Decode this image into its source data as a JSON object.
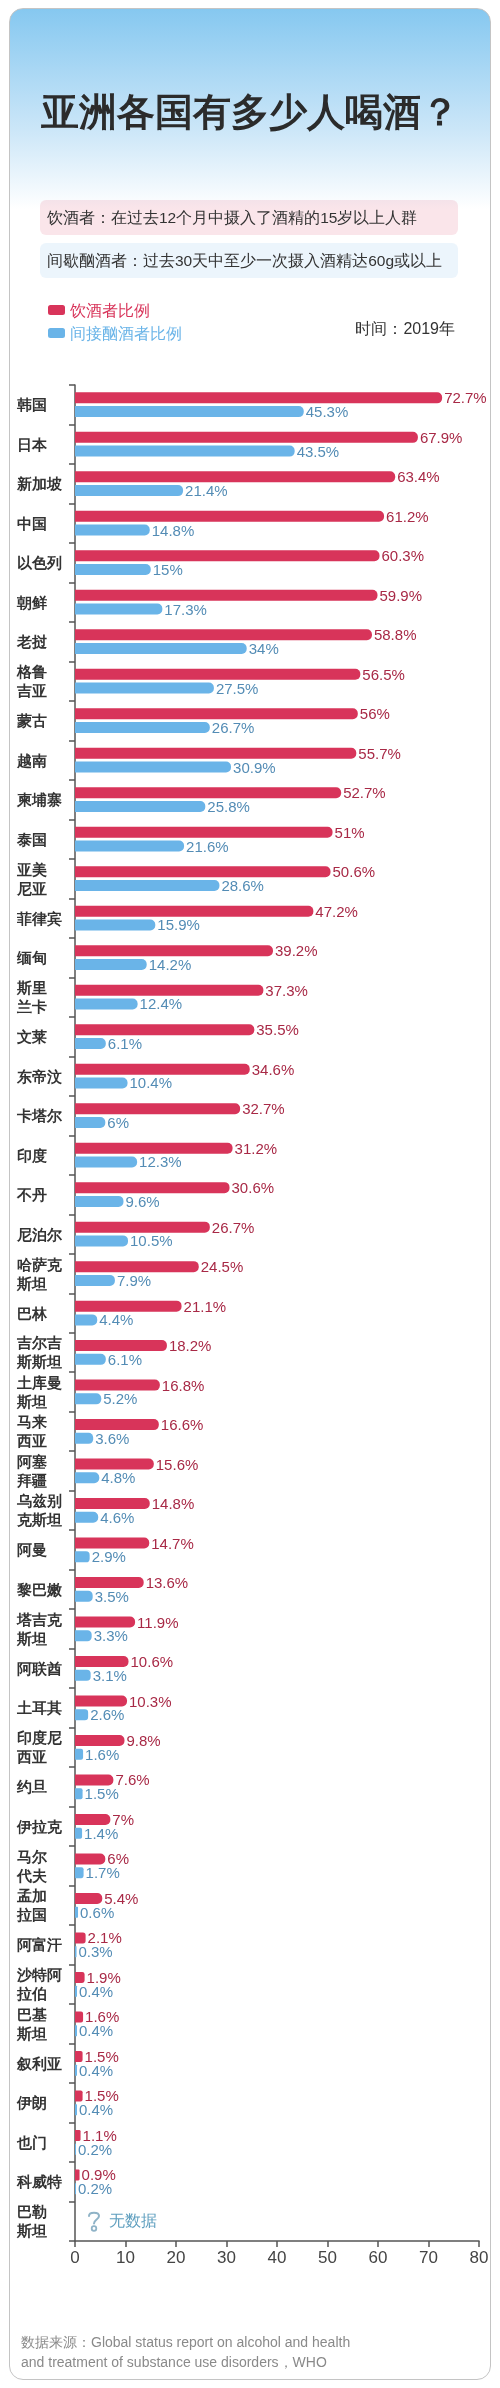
{
  "chart_data": {
    "type": "bar",
    "orientation": "horizontal",
    "title": "亚洲各国有多少人喝酒？",
    "categories": [
      "韩国",
      "日本",
      "新加坡",
      "中国",
      "以色列",
      "朝鲜",
      "老挝",
      "格鲁吉亚",
      "蒙古",
      "越南",
      "柬埔寨",
      "泰国",
      "亚美尼亚",
      "菲律宾",
      "缅甸",
      "斯里兰卡",
      "文莱",
      "东帝汶",
      "卡塔尔",
      "印度",
      "不丹",
      "尼泊尔",
      "哈萨克斯坦",
      "巴林",
      "吉尔吉斯斯坦",
      "土库曼斯坦",
      "马来西亚",
      "阿塞拜疆",
      "乌兹别克斯坦",
      "阿曼",
      "黎巴嫩",
      "塔吉克斯坦",
      "阿联酋",
      "土耳其",
      "印度尼西亚",
      "约旦",
      "伊拉克",
      "马尔代夫",
      "孟加拉国",
      "阿富汗",
      "沙特阿拉伯",
      "巴基斯坦",
      "叙利亚",
      "伊朗",
      "也门",
      "科威特",
      "巴勒斯坦"
    ],
    "series": [
      {
        "name": "饮酒者比例",
        "color": "#d8345a",
        "values": [
          72.7,
          67.9,
          63.4,
          61.2,
          60.3,
          59.9,
          58.8,
          56.5,
          56,
          55.7,
          52.7,
          51,
          50.6,
          47.2,
          39.2,
          37.3,
          35.5,
          34.6,
          32.7,
          31.2,
          30.6,
          26.7,
          24.5,
          21.1,
          18.2,
          16.8,
          16.6,
          15.6,
          14.8,
          14.7,
          13.6,
          11.9,
          10.6,
          10.3,
          9.8,
          7.6,
          7,
          6,
          5.4,
          2.1,
          1.9,
          1.6,
          1.5,
          1.5,
          1.1,
          0.9,
          null
        ],
        "value_labels": [
          "72.7%",
          "67.9%",
          "63.4%",
          "61.2%",
          "60.3%",
          "59.9%",
          "58.8%",
          "56.5%",
          "56%",
          "55.7%",
          "52.7%",
          "51%",
          "50.6%",
          "47.2%",
          "39.2%",
          "37.3%",
          "35.5%",
          "34.6%",
          "32.7%",
          "31.2%",
          "30.6%",
          "26.7%",
          "24.5%",
          "21.1%",
          "18.2%",
          "16.8%",
          "16.6%",
          "15.6%",
          "14.8%",
          "14.7%",
          "13.6%",
          "11.9%",
          "10.6%",
          "10.3%",
          "9.8%",
          "7.6%",
          "7%",
          "6%",
          "5.4%",
          "2.1%",
          "1.9%",
          "1.6%",
          "1.5%",
          "1.5%",
          "1.1%",
          "0.9%",
          null
        ]
      },
      {
        "name": "间接酗酒者比例",
        "color": "#6ab4e8",
        "values": [
          45.3,
          43.5,
          21.4,
          14.8,
          15,
          17.3,
          34,
          27.5,
          26.7,
          30.9,
          25.8,
          21.6,
          28.6,
          15.9,
          14.2,
          12.4,
          6.1,
          10.4,
          6,
          12.3,
          9.6,
          10.5,
          7.9,
          4.4,
          6.1,
          5.2,
          3.6,
          4.8,
          4.6,
          2.9,
          3.5,
          3.3,
          3.1,
          2.6,
          1.6,
          1.5,
          1.4,
          1.7,
          0.6,
          0.3,
          0.4,
          0.4,
          0.4,
          0.4,
          0.2,
          0.2,
          null
        ],
        "value_labels": [
          "45.3%",
          "43.5%",
          "21.4%",
          "14.8%",
          "15%",
          "17.3%",
          "34%",
          "27.5%",
          "26.7%",
          "30.9%",
          "25.8%",
          "21.6%",
          "28.6%",
          "15.9%",
          "14.2%",
          "12.4%",
          "6.1%",
          "10.4%",
          "6%",
          "12.3%",
          "9.6%",
          "10.5%",
          "7.9%",
          "4.4%",
          "6.1%",
          "5.2%",
          "3.6%",
          "4.8%",
          "4.6%",
          "2.9%",
          "3.5%",
          "3.3%",
          "3.1%",
          "2.6%",
          "1.6%",
          "1.5%",
          "1.4%",
          "1.7%",
          "0.6%",
          "0.3%",
          "0.4%",
          "0.4%",
          "0.4%",
          "0.4%",
          "0.2%",
          "0.2%",
          null
        ]
      }
    ],
    "xlim": [
      0,
      80
    ],
    "xticks": [
      0,
      10,
      20,
      30,
      40,
      50,
      60,
      70,
      80
    ],
    "legend": "top left",
    "annotations": [
      "饮酒者：在过去12个月中摄入了酒精的15岁以上人群",
      "间歇酗酒者：过去30天中至少一次摄入酒精达60g或以上",
      "时间：2019年",
      "无数据",
      "数据来源：Global status report on alcohol and health and treatment of substance use disorders，WHO"
    ]
  }
}
